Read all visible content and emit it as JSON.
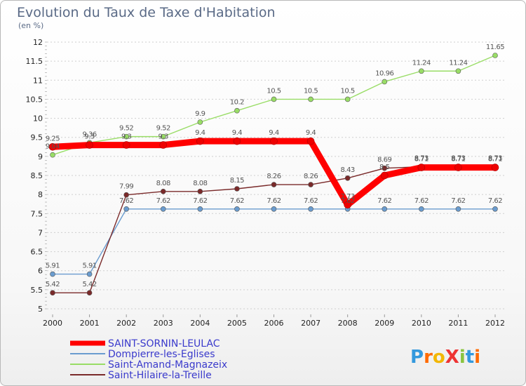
{
  "chart_data": {
    "type": "line",
    "title": "Evolution du Taux de Taxe d'Habitation",
    "subtitle": "(en %)",
    "x": [
      "2000",
      "2001",
      "2002",
      "2003",
      "2004",
      "2005",
      "2006",
      "2007",
      "2008",
      "2009",
      "2010",
      "2011",
      "2012"
    ],
    "yticks": [
      "5",
      "5.5",
      "6",
      "6.5",
      "7",
      "7.5",
      "8",
      "8.5",
      "9",
      "9.5",
      "10",
      "10.5",
      "11",
      "11.5",
      "12"
    ],
    "ylim": [
      5,
      12
    ],
    "grid": "dashed-horizontal",
    "legend_position": "bottom-left",
    "series": [
      {
        "name": "SAINT-SORNIN-LEULAC",
        "color": "#ff0000",
        "values": [
          9.25,
          9.3,
          9.3,
          9.3,
          9.4,
          9.4,
          9.4,
          9.4,
          7.73,
          8.5,
          8.71,
          8.71,
          8.71
        ],
        "labels": [
          "9.25",
          "9.3",
          "9.3",
          "9.3",
          "9.4",
          "9.4",
          "9.4",
          "9.4",
          "7.73",
          "8.5",
          "8.71",
          "8.71",
          "8.71"
        ]
      },
      {
        "name": "Dompierre-les-Eglises",
        "color": "#6a9ccf",
        "values": [
          5.91,
          5.91,
          7.62,
          7.62,
          7.62,
          7.62,
          7.62,
          7.62,
          7.62,
          7.62,
          7.62,
          7.62,
          7.62
        ],
        "labels": [
          "5.91",
          "5.91",
          "7.62",
          "7.62",
          "7.62",
          "7.62",
          "7.62",
          "7.62",
          "7.62",
          "7.62",
          "7.62",
          "7.62",
          "7.62"
        ]
      },
      {
        "name": "Saint-Amand-Magnazeix",
        "color": "#99dd66",
        "values": [
          9.04,
          9.36,
          9.52,
          9.52,
          9.9,
          10.2,
          10.5,
          10.5,
          10.5,
          10.96,
          11.24,
          11.24,
          11.65
        ],
        "labels": [
          "9.04",
          "9.36",
          "9.52",
          "9.52",
          "9.9",
          "10.2",
          "10.5",
          "10.5",
          "10.5",
          "10.96",
          "11.24",
          "11.24",
          "11.65"
        ]
      },
      {
        "name": "Saint-Hilaire-la-Treille",
        "color": "#7a2a2a",
        "values": [
          5.42,
          5.42,
          7.99,
          8.08,
          8.08,
          8.15,
          8.26,
          8.26,
          8.43,
          8.69,
          8.73,
          8.73,
          8.73
        ],
        "labels": [
          "5.42",
          "5.42",
          "7.99",
          "8.08",
          "8.08",
          "8.15",
          "8.26",
          "8.26",
          "8.43",
          "8.69",
          "8.73",
          "8.73",
          "8.73"
        ]
      }
    ]
  },
  "logo": {
    "text": "ProXiti",
    "letters": [
      "P",
      "r",
      "o",
      "X",
      "i",
      "t",
      "i"
    ],
    "colors": [
      "#3399dd",
      "#ff6a00",
      "#f2b705",
      "#ee3333",
      "#8ac43f",
      "#3399dd",
      "#ff6a00"
    ]
  }
}
